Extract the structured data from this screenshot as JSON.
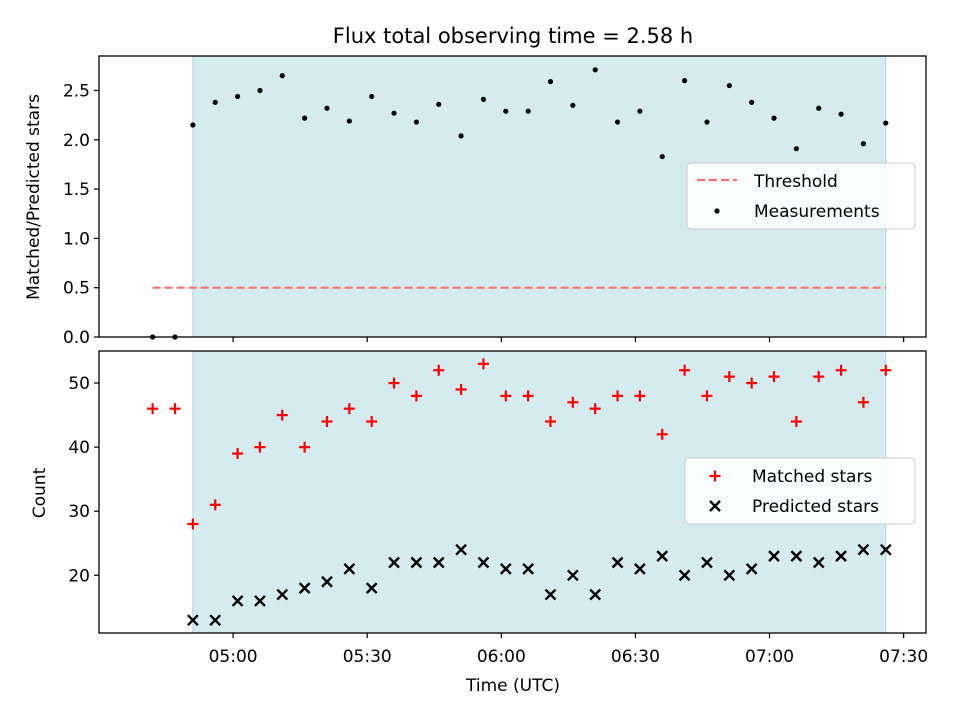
{
  "chart_data": [
    {
      "type": "scatter",
      "title": "Flux total observing time = 2.58 h",
      "xlabel": "",
      "ylabel": "Matched/Predicted stars",
      "ylim": [
        0,
        2.85
      ],
      "yticks": [
        "0.0",
        "0.5",
        "1.0",
        "1.5",
        "2.0",
        "2.5"
      ],
      "observing_window": [
        "04:51",
        "07:26"
      ],
      "threshold": {
        "name": "Threshold",
        "value": 0.5,
        "x_range": [
          "04:42",
          "07:26"
        ],
        "color": "#ff6f6f"
      },
      "series": [
        {
          "name": "Measurements",
          "color": "#000000",
          "x": [
            "04:42",
            "04:47",
            "04:51",
            "04:56",
            "05:01",
            "05:06",
            "05:11",
            "05:16",
            "05:21",
            "05:26",
            "05:31",
            "05:36",
            "05:41",
            "05:46",
            "05:51",
            "05:56",
            "06:01",
            "06:06",
            "06:11",
            "06:16",
            "06:21",
            "06:26",
            "06:31",
            "06:36",
            "06:41",
            "06:46",
            "06:51",
            "06:56",
            "07:01",
            "07:06",
            "07:11",
            "07:16",
            "07:21",
            "07:26"
          ],
          "values": [
            0.0,
            0.0,
            2.15,
            2.38,
            2.44,
            2.5,
            2.65,
            2.22,
            2.32,
            2.19,
            2.44,
            2.27,
            2.18,
            2.36,
            2.04,
            2.41,
            2.29,
            2.29,
            2.59,
            2.35,
            2.71,
            2.18,
            2.29,
            1.83,
            2.6,
            2.18,
            2.55,
            2.38,
            2.22,
            1.91,
            2.32,
            2.26,
            1.96,
            2.17
          ]
        }
      ],
      "legend": "right"
    },
    {
      "type": "scatter",
      "xlabel": "Time (UTC)",
      "ylabel": "Count",
      "ylim": [
        11,
        55
      ],
      "yticks": [
        "20",
        "30",
        "40",
        "50"
      ],
      "xticks": [
        "05:00",
        "05:30",
        "06:00",
        "06:30",
        "07:00",
        "07:30"
      ],
      "observing_window": [
        "04:51",
        "07:26"
      ],
      "series": [
        {
          "name": "Matched stars",
          "marker": "plus",
          "color": "#ff0000",
          "x": [
            "04:42",
            "04:47",
            "04:51",
            "04:56",
            "05:01",
            "05:06",
            "05:11",
            "05:16",
            "05:21",
            "05:26",
            "05:31",
            "05:36",
            "05:41",
            "05:46",
            "05:51",
            "05:56",
            "06:01",
            "06:06",
            "06:11",
            "06:16",
            "06:21",
            "06:26",
            "06:31",
            "06:36",
            "06:41",
            "06:46",
            "06:51",
            "06:56",
            "07:01",
            "07:06",
            "07:11",
            "07:16",
            "07:21",
            "07:26"
          ],
          "values": [
            46,
            46,
            28,
            31,
            39,
            40,
            45,
            40,
            44,
            46,
            44,
            50,
            48,
            52,
            49,
            53,
            48,
            48,
            44,
            47,
            46,
            48,
            48,
            42,
            52,
            48,
            51,
            50,
            51,
            44,
            51,
            52,
            47,
            52
          ]
        },
        {
          "name": "Predicted stars",
          "marker": "x",
          "color": "#000000",
          "x": [
            "04:51",
            "04:56",
            "05:01",
            "05:06",
            "05:11",
            "05:16",
            "05:21",
            "05:26",
            "05:31",
            "05:36",
            "05:41",
            "05:46",
            "05:51",
            "05:56",
            "06:01",
            "06:06",
            "06:11",
            "06:16",
            "06:21",
            "06:26",
            "06:31",
            "06:36",
            "06:41",
            "06:46",
            "06:51",
            "06:56",
            "07:01",
            "07:06",
            "07:11",
            "07:16",
            "07:21",
            "07:26"
          ],
          "values": [
            13,
            13,
            16,
            16,
            17,
            18,
            19,
            21,
            18,
            22,
            22,
            22,
            24,
            22,
            21,
            21,
            17,
            20,
            17,
            22,
            21,
            23,
            20,
            22,
            20,
            21,
            23,
            23,
            22,
            23,
            24,
            24
          ]
        }
      ],
      "legend": "right"
    }
  ],
  "colors": {
    "shade": "#d4ebf0",
    "shade_edge": "#a9d6e3"
  }
}
